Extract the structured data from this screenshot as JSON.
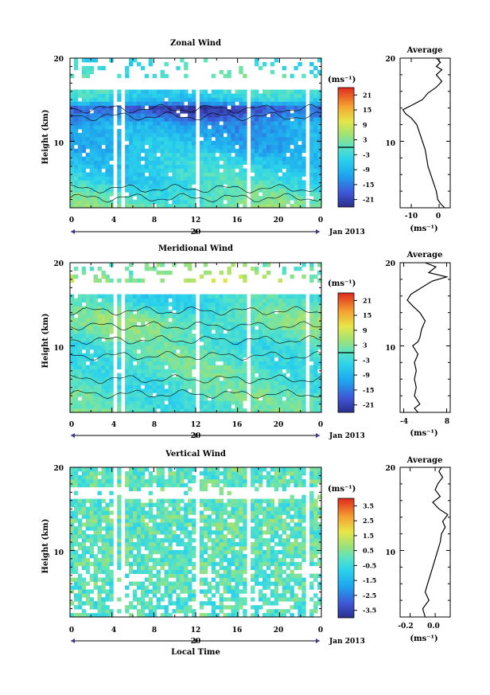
{
  "chart_data": [
    {
      "type": "heatmap",
      "title": "Zonal Wind",
      "ylabel": "Height (km)",
      "ylim": [
        2,
        20
      ],
      "xlim": [
        0,
        24
      ],
      "x_ticks": [
        "0",
        "4",
        "8",
        "12",
        "16",
        "20",
        "0"
      ],
      "y_ticks": [
        "20",
        "10"
      ],
      "date_tick": "20",
      "date_label": "Jan 2013",
      "colorbar": {
        "unit": "(ms⁻¹)",
        "range": [
          -24,
          24
        ],
        "tick_labels": [
          "21",
          "15",
          "9",
          "3",
          "-3",
          "-9",
          "-15",
          "-21"
        ],
        "contour_level": 0
      },
      "gaps_hours": [
        [
          4.0,
          4.4
        ],
        [
          5.0,
          5.4
        ],
        [
          11.5,
          11.7
        ],
        [
          12.1,
          12.3
        ],
        [
          16.8,
          17.2
        ],
        [
          21.2,
          21.5
        ],
        [
          22.6,
          22.9
        ]
      ],
      "profile_by_height": [
        [
          2,
          2
        ],
        [
          3,
          0
        ],
        [
          4,
          -1
        ],
        [
          5,
          -3
        ],
        [
          6,
          -4
        ],
        [
          7,
          -5
        ],
        [
          8,
          -6
        ],
        [
          9,
          -8
        ],
        [
          10,
          -9
        ],
        [
          11,
          -10
        ],
        [
          12,
          -11
        ],
        [
          13,
          -16
        ],
        [
          14,
          -20
        ],
        [
          15,
          -6
        ],
        [
          16,
          -3
        ],
        [
          17,
          -1
        ],
        [
          18,
          0
        ],
        [
          19,
          -2
        ]
      ],
      "average": {
        "title": "Average",
        "xlabel": "(ms⁻¹)",
        "x_ticks": [
          "-10",
          "0"
        ],
        "y_ticks": [
          "20",
          "10"
        ],
        "xlim": [
          -14,
          4
        ],
        "ylim": [
          2,
          20
        ],
        "profile": [
          [
            2,
            2
          ],
          [
            2.5,
            0.5
          ],
          [
            3,
            -0.5
          ],
          [
            4,
            -1
          ],
          [
            5,
            -2
          ],
          [
            6,
            -3
          ],
          [
            7,
            -4
          ],
          [
            8,
            -4.5
          ],
          [
            9,
            -5
          ],
          [
            10,
            -6
          ],
          [
            11,
            -7
          ],
          [
            12,
            -8
          ],
          [
            12.8,
            -10
          ],
          [
            13.3,
            -12
          ],
          [
            13.8,
            -13
          ],
          [
            14.3,
            -10
          ],
          [
            15,
            -6
          ],
          [
            15.8,
            -4
          ],
          [
            16.5,
            -1
          ],
          [
            17.2,
            1
          ],
          [
            18,
            -1
          ],
          [
            18.6,
            1
          ],
          [
            19,
            -1
          ],
          [
            19.5,
            0.5
          ],
          [
            20,
            -1
          ]
        ]
      }
    },
    {
      "type": "heatmap",
      "title": "Meridional Wind",
      "ylabel": "Height (km)",
      "ylim": [
        2,
        20
      ],
      "xlim": [
        0,
        24
      ],
      "x_ticks": [
        "0",
        "4",
        "8",
        "12",
        "16",
        "20",
        "0"
      ],
      "y_ticks": [
        "20",
        "10"
      ],
      "date_tick": "20",
      "date_label": "Jan 2013",
      "colorbar": {
        "unit": "(ms⁻¹)",
        "range": [
          -24,
          24
        ],
        "tick_labels": [
          "21",
          "15",
          "9",
          "3",
          "-3",
          "-9",
          "-15",
          "-21"
        ],
        "contour_level": 0
      },
      "gaps_hours": [
        [
          4.0,
          4.4
        ],
        [
          5.0,
          5.4
        ],
        [
          11.5,
          11.7
        ],
        [
          12.1,
          12.3
        ],
        [
          16.8,
          17.2
        ],
        [
          21.2,
          21.5
        ],
        [
          22.6,
          22.9
        ]
      ],
      "profile_by_height": [
        [
          2,
          0
        ],
        [
          3,
          -1
        ],
        [
          4,
          0
        ],
        [
          5,
          -1
        ],
        [
          6,
          -1
        ],
        [
          7,
          0
        ],
        [
          8,
          -1
        ],
        [
          9,
          0
        ],
        [
          10,
          -2
        ],
        [
          11,
          0
        ],
        [
          12,
          1
        ],
        [
          13,
          2
        ],
        [
          14,
          0
        ],
        [
          15,
          -2
        ],
        [
          16,
          -3
        ],
        [
          17,
          1
        ],
        [
          18,
          6
        ],
        [
          19,
          3
        ]
      ],
      "average": {
        "title": "Average",
        "xlabel": "(ms⁻¹)",
        "x_ticks": [
          "-4",
          "8"
        ],
        "y_ticks": [
          "20",
          "10"
        ],
        "xlim": [
          -5,
          9
        ],
        "ylim": [
          2,
          20
        ],
        "profile": [
          [
            2,
            0
          ],
          [
            2.5,
            -1
          ],
          [
            3,
            0.5
          ],
          [
            4,
            -1
          ],
          [
            5,
            -0.5
          ],
          [
            6,
            -1
          ],
          [
            7,
            -0.5
          ],
          [
            8,
            -1
          ],
          [
            9,
            0
          ],
          [
            10,
            -1.5
          ],
          [
            10.5,
            0
          ],
          [
            11,
            0.5
          ],
          [
            12,
            1
          ],
          [
            13,
            2
          ],
          [
            14,
            0.5
          ],
          [
            14.8,
            -1.5
          ],
          [
            15.5,
            -3
          ],
          [
            16.2,
            -2
          ],
          [
            17,
            1
          ],
          [
            17.8,
            4
          ],
          [
            18.3,
            8
          ],
          [
            18.8,
            3
          ],
          [
            19.5,
            5
          ],
          [
            20,
            2
          ]
        ]
      }
    },
    {
      "type": "heatmap",
      "title": "Vertical Wind",
      "ylabel": "Height (km)",
      "xlabel": "Local Time",
      "ylim": [
        2,
        20
      ],
      "xlim": [
        0,
        24
      ],
      "x_ticks": [
        "0",
        "4",
        "8",
        "12",
        "16",
        "20",
        "0"
      ],
      "y_ticks": [
        "20",
        "10"
      ],
      "date_tick": "20",
      "date_label": "Jan 2013",
      "colorbar": {
        "unit": "(ms⁻¹)",
        "range": [
          -4,
          4
        ],
        "tick_labels": [
          "3.5",
          "2.5",
          "1.5",
          "0.5",
          "-0.5",
          "-1.5",
          "-2.5",
          "-3.5"
        ],
        "contour_level": null
      },
      "gaps_hours": [
        [
          4.0,
          4.4
        ],
        [
          5.0,
          5.4
        ],
        [
          11.5,
          11.7
        ],
        [
          12.1,
          12.3
        ],
        [
          16.8,
          17.2
        ],
        [
          21.2,
          21.5
        ],
        [
          22.6,
          22.9
        ]
      ],
      "profile_by_height": [
        [
          2,
          -0.1
        ],
        [
          4,
          -0.1
        ],
        [
          6,
          0
        ],
        [
          8,
          0
        ],
        [
          10,
          0.05
        ],
        [
          12,
          0.1
        ],
        [
          14,
          0.1
        ],
        [
          16,
          0
        ],
        [
          18,
          0
        ],
        [
          20,
          0.05
        ]
      ],
      "average": {
        "title": "Average",
        "xlabel": "(ms⁻¹)",
        "x_ticks": [
          "-0.2",
          "0.0"
        ],
        "y_ticks": [
          "20",
          "10"
        ],
        "xlim": [
          -0.28,
          0.12
        ],
        "ylim": [
          2,
          20
        ],
        "profile": [
          [
            2,
            -0.08
          ],
          [
            3,
            -0.1
          ],
          [
            4,
            -0.05
          ],
          [
            5,
            -0.08
          ],
          [
            6,
            -0.06
          ],
          [
            7,
            -0.04
          ],
          [
            8,
            -0.02
          ],
          [
            9,
            0.0
          ],
          [
            10,
            0.02
          ],
          [
            11,
            0.04
          ],
          [
            12,
            0.05
          ],
          [
            12.8,
            0.08
          ],
          [
            13.5,
            0.06
          ],
          [
            14.3,
            0.1
          ],
          [
            15,
            0.03
          ],
          [
            15.8,
            -0.02
          ],
          [
            16.5,
            0.04
          ],
          [
            17.3,
            0.0
          ],
          [
            18,
            0.02
          ],
          [
            18.8,
            0.06
          ],
          [
            19.5,
            0.03
          ],
          [
            20,
            0.05
          ]
        ]
      }
    }
  ]
}
